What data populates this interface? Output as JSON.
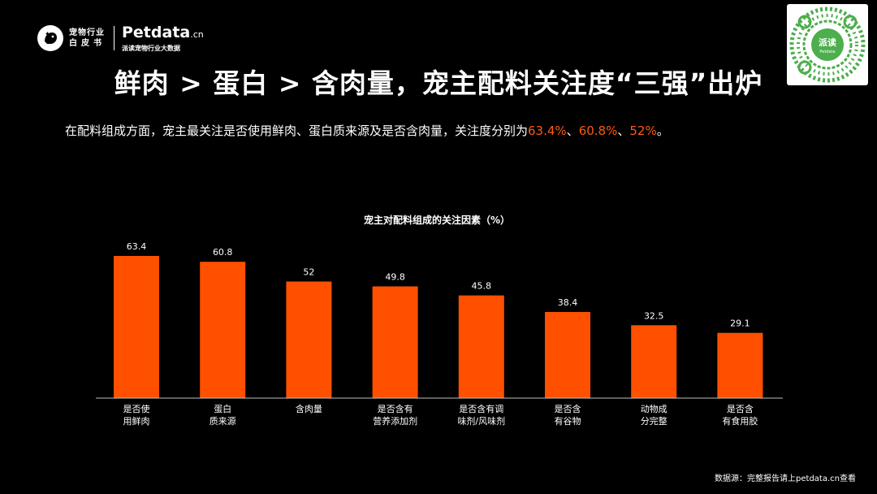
{
  "brand": {
    "white_paper_line1": "宠物行业",
    "white_paper_line2": "白皮书",
    "name": "Petdata",
    "name_suffix": ".cn",
    "tagline": "派读宠物行业大数据"
  },
  "qr": {
    "center_label": "派读",
    "center_sub": "Petdata"
  },
  "headline": "鲜肉 > 蛋白 > 含肉量，宠主配料关注度“三强”出炉",
  "subtitle": {
    "text": "在配料组成方面，宠主最关注是否使用鲜肉、蛋白质来源及是否含肉量，关注度分别为",
    "v1": "63.4%",
    "sep1": "、",
    "v2": "60.8%",
    "sep2": "、",
    "v3": "52%",
    "end": "。"
  },
  "chart_data": {
    "type": "bar",
    "title": "宠主对配料组成的关注因素（%）",
    "categories": [
      [
        "是否使",
        "用鲜肉"
      ],
      [
        "蛋白",
        "质来源"
      ],
      [
        "含肉量"
      ],
      [
        "是否含有",
        "营养添加剂"
      ],
      [
        "是否含有调",
        "味剂/风味剂"
      ],
      [
        "是否含",
        "有谷物"
      ],
      [
        "动物成",
        "分完整"
      ],
      [
        "是否含",
        "有食用胶"
      ]
    ],
    "values": [
      63.4,
      60.8,
      52,
      49.8,
      45.8,
      38.4,
      32.5,
      29.1
    ],
    "value_labels": [
      "63.4",
      "60.8",
      "52",
      "49.8",
      "45.8",
      "38.4",
      "32.5",
      "29.1"
    ],
    "ylim": [
      0,
      63.4
    ],
    "bar_color": "#ff5000",
    "grid": false,
    "legend": "none"
  },
  "footer": {
    "source": "数据源：完整报告请上petdata.cn查看"
  },
  "colors": {
    "accent": "#ff5a12",
    "background": "#000000",
    "text": "#ffffff"
  }
}
